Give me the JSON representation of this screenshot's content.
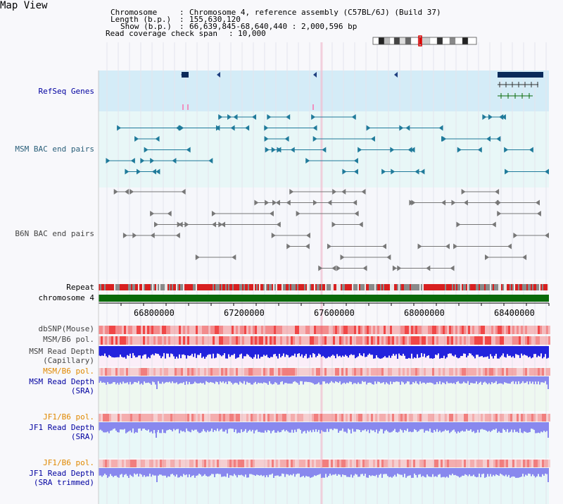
{
  "title": "Map View",
  "header": {
    "chromosome_key": "Chromosome",
    "chromosome_value": "Chromosome 4, reference assembly (C57BL/6J) (Build 37)",
    "length_key": "Length (b.p.)",
    "length_value": "155,630,120",
    "show_key": "Show (b.p.)",
    "show_value": "66,639,845-68,640,440 : 2,000,596 bp",
    "coverage_key": "Read coverage check span",
    "coverage_value": "10,000"
  },
  "tracks": {
    "refseq": "RefSeq Genes",
    "msm_bac": "MSM BAC end pairs",
    "b6n_bac": "B6N BAC end pairs",
    "repeat": "Repeat",
    "chromosome": "chromosome 4",
    "dbsnp": "dbSNP(Mouse)",
    "msm_b6_pol_1": "MSM/B6 pol.",
    "msm_depth_cap_1": "MSM Read Depth",
    "msm_depth_cap_2": "(Capillary)",
    "msm_b6_pol_2": "MSM/B6 pol.",
    "msm_depth_sra_1": "MSM Read Depth",
    "msm_depth_sra_2": "(SRA)",
    "jf1_b6_pol_1": "JF1/B6 pol.",
    "jf1_depth_sra_1": "JF1 Read Depth",
    "jf1_depth_sra_2": "(SRA)",
    "jf1_b6_pol_2": "JF1/B6 pol.",
    "jf1_depth_trim_1": "JF1 Read Depth",
    "jf1_depth_trim_2": "(SRA trimmed)"
  },
  "axis": {
    "ticks": [
      "66800000",
      "67200000",
      "67600000",
      "68000000",
      "68400000"
    ]
  },
  "colors": {
    "refseq_bg": "#d4ecf7",
    "bac_bg": "#e8f7f7",
    "capillary_bar": "#2222dd",
    "sra_bar": "#8888ee",
    "chromosome_bar": "#0a6a0a",
    "snp_red": "#ee3333",
    "orange_label": "#e08800"
  }
}
